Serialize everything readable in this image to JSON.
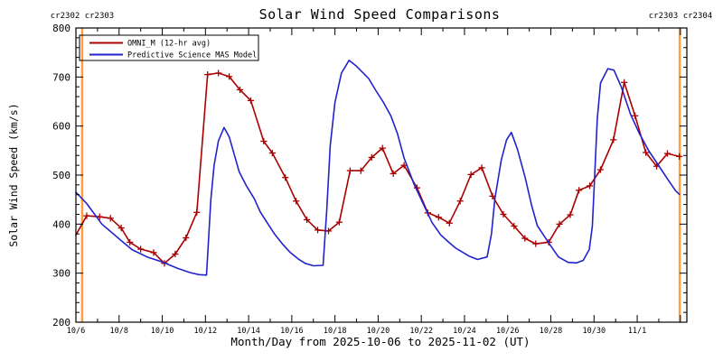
{
  "title": "Solar Wind Speed Comparisons",
  "annotations": {
    "top_left": "cr2302 cr2303",
    "top_right": "cr2303 cr2304",
    "color": "#ffa040"
  },
  "axes": {
    "xlabel": "Month/Day from 2025-10-06 to 2025-11-02 (UT)",
    "ylabel": "Solar Wind Speed (km/s)",
    "ylim": [
      200,
      800
    ],
    "y_major_step": 100,
    "y_minor_step": 20,
    "x_range_days": [
      0,
      28.3
    ],
    "x_major_step": 2,
    "x_minor_step": 1,
    "xticks": [
      {
        "day": 0,
        "label": "10/6"
      },
      {
        "day": 2,
        "label": "10/8"
      },
      {
        "day": 4,
        "label": "10/10"
      },
      {
        "day": 6,
        "label": "10/12"
      },
      {
        "day": 8,
        "label": "10/14"
      },
      {
        "day": 10,
        "label": "10/16"
      },
      {
        "day": 12,
        "label": "10/18"
      },
      {
        "day": 14,
        "label": "10/20"
      },
      {
        "day": 16,
        "label": "10/22"
      },
      {
        "day": 18,
        "label": "10/24"
      },
      {
        "day": 20,
        "label": "10/26"
      },
      {
        "day": 22,
        "label": "10/28"
      },
      {
        "day": 24,
        "label": "10/30"
      },
      {
        "day": 26,
        "label": "11/1"
      }
    ]
  },
  "chart_data": {
    "type": "line",
    "x_unit": "days since 2025-10-06 00:00 UT",
    "y_unit": "km/s",
    "grid": false,
    "legend_position": "top-left-inside",
    "vlines": [
      {
        "name": "carrington-rotation-start-cr2303",
        "day": 0.29
      },
      {
        "name": "carrington-rotation-start-cr2304",
        "day": 27.97
      }
    ],
    "series": [
      {
        "name": "OMNI_M (12-hr avg)",
        "color": "#aa0000",
        "marker": "plus",
        "points": [
          [
            0.0,
            378
          ],
          [
            0.5,
            417
          ],
          [
            1.1,
            415
          ],
          [
            1.6,
            412
          ],
          [
            2.1,
            392
          ],
          [
            2.5,
            363
          ],
          [
            3.0,
            349
          ],
          [
            3.6,
            342
          ],
          [
            4.1,
            320
          ],
          [
            4.6,
            339
          ],
          [
            5.1,
            372
          ],
          [
            5.6,
            424
          ],
          [
            6.1,
            705
          ],
          [
            6.6,
            708
          ],
          [
            7.1,
            701
          ],
          [
            7.6,
            674
          ],
          [
            8.1,
            652
          ],
          [
            8.7,
            569
          ],
          [
            9.1,
            545
          ],
          [
            9.7,
            495
          ],
          [
            10.2,
            447
          ],
          [
            10.7,
            409
          ],
          [
            11.2,
            388
          ],
          [
            11.7,
            386
          ],
          [
            12.2,
            404
          ],
          [
            12.7,
            509
          ],
          [
            13.2,
            509
          ],
          [
            13.7,
            536
          ],
          [
            14.2,
            555
          ],
          [
            14.7,
            503
          ],
          [
            15.2,
            520
          ],
          [
            15.8,
            474
          ],
          [
            16.3,
            423
          ],
          [
            16.8,
            414
          ],
          [
            17.3,
            402
          ],
          [
            17.8,
            447
          ],
          [
            18.3,
            501
          ],
          [
            18.8,
            515
          ],
          [
            19.3,
            457
          ],
          [
            19.8,
            420
          ],
          [
            20.3,
            396
          ],
          [
            20.8,
            371
          ],
          [
            21.3,
            360
          ],
          [
            21.9,
            363
          ],
          [
            22.4,
            400
          ],
          [
            22.9,
            419
          ],
          [
            23.3,
            469
          ],
          [
            23.8,
            478
          ],
          [
            24.3,
            511
          ],
          [
            24.9,
            572
          ],
          [
            25.4,
            689
          ],
          [
            25.9,
            621
          ],
          [
            26.4,
            546
          ],
          [
            26.9,
            518
          ],
          [
            27.4,
            544
          ],
          [
            27.95,
            538
          ]
        ]
      },
      {
        "name": "Predictive Science MAS Model",
        "color": "#2222cc",
        "marker": "none",
        "points": [
          [
            0.0,
            465
          ],
          [
            0.5,
            442
          ],
          [
            1.2,
            400
          ],
          [
            2.0,
            370
          ],
          [
            2.6,
            348
          ],
          [
            3.3,
            333
          ],
          [
            4.0,
            323
          ],
          [
            4.7,
            310
          ],
          [
            5.3,
            301
          ],
          [
            5.7,
            297
          ],
          [
            6.05,
            296
          ],
          [
            6.25,
            450
          ],
          [
            6.4,
            520
          ],
          [
            6.6,
            570
          ],
          [
            6.86,
            597
          ],
          [
            7.1,
            578
          ],
          [
            7.56,
            507
          ],
          [
            7.9,
            478
          ],
          [
            8.26,
            452
          ],
          [
            8.54,
            425
          ],
          [
            8.9,
            400
          ],
          [
            9.23,
            378
          ],
          [
            9.6,
            358
          ],
          [
            9.93,
            342
          ],
          [
            10.3,
            329
          ],
          [
            10.62,
            320
          ],
          [
            11.0,
            315
          ],
          [
            11.45,
            316
          ],
          [
            11.62,
            430
          ],
          [
            11.78,
            560
          ],
          [
            12.0,
            648
          ],
          [
            12.3,
            708
          ],
          [
            12.65,
            734
          ],
          [
            13.0,
            722
          ],
          [
            13.56,
            697
          ],
          [
            13.9,
            672
          ],
          [
            14.25,
            648
          ],
          [
            14.6,
            620
          ],
          [
            14.9,
            584
          ],
          [
            15.2,
            535
          ],
          [
            15.65,
            483
          ],
          [
            16.1,
            440
          ],
          [
            16.5,
            403
          ],
          [
            16.9,
            378
          ],
          [
            17.3,
            362
          ],
          [
            17.6,
            351
          ],
          [
            18.2,
            335
          ],
          [
            18.6,
            328
          ],
          [
            19.05,
            333
          ],
          [
            19.25,
            380
          ],
          [
            19.41,
            452
          ],
          [
            19.7,
            530
          ],
          [
            19.95,
            572
          ],
          [
            20.17,
            587
          ],
          [
            20.45,
            553
          ],
          [
            20.81,
            495
          ],
          [
            21.1,
            440
          ],
          [
            21.37,
            397
          ],
          [
            21.93,
            360
          ],
          [
            22.35,
            333
          ],
          [
            22.8,
            322
          ],
          [
            23.2,
            321
          ],
          [
            23.5,
            326
          ],
          [
            23.78,
            348
          ],
          [
            23.92,
            395
          ],
          [
            24.02,
            490
          ],
          [
            24.15,
            615
          ],
          [
            24.3,
            688
          ],
          [
            24.64,
            717
          ],
          [
            24.92,
            714
          ],
          [
            25.27,
            679
          ],
          [
            25.69,
            624
          ],
          [
            26.11,
            584
          ],
          [
            26.53,
            550
          ],
          [
            26.94,
            523
          ],
          [
            27.36,
            495
          ],
          [
            27.78,
            468
          ],
          [
            27.95,
            461
          ]
        ]
      }
    ]
  }
}
